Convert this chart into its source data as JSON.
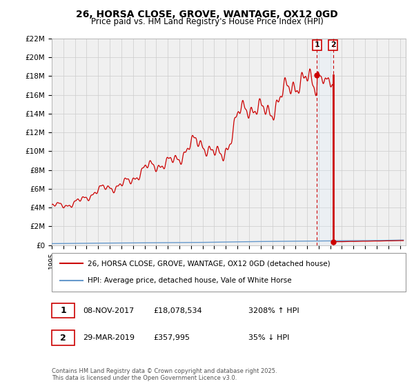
{
  "title": "26, HORSA CLOSE, GROVE, WANTAGE, OX12 0GD",
  "subtitle": "Price paid vs. HM Land Registry's House Price Index (HPI)",
  "hpi_line_color": "#cc0000",
  "actual_line_color": "#6699cc",
  "vshade_color": "#ddeeff",
  "ylim": [
    0,
    22000000
  ],
  "yticks": [
    0,
    2000000,
    4000000,
    6000000,
    8000000,
    10000000,
    12000000,
    14000000,
    16000000,
    18000000,
    20000000,
    22000000
  ],
  "ytick_labels": [
    "£0",
    "£2M",
    "£4M",
    "£6M",
    "£8M",
    "£10M",
    "£12M",
    "£14M",
    "£16M",
    "£18M",
    "£20M",
    "£22M"
  ],
  "xlim_start": 1995.0,
  "xlim_end": 2025.5,
  "event1_year": 2017.86,
  "event2_year": 2019.24,
  "event1_price": 18078534,
  "event2_price": 357995,
  "legend_line1": "26, HORSA CLOSE, GROVE, WANTAGE, OX12 0GD (detached house)",
  "legend_line2": "HPI: Average price, detached house, Vale of White Horse",
  "annotation1_date": "08-NOV-2017",
  "annotation1_price": "£18,078,534",
  "annotation1_hpi": "3208% ↑ HPI",
  "annotation2_date": "29-MAR-2019",
  "annotation2_price": "£357,995",
  "annotation2_hpi": "35% ↓ HPI",
  "footer": "Contains HM Land Registry data © Crown copyright and database right 2025.\nThis data is licensed under the Open Government Licence v3.0.",
  "background_color": "#ffffff",
  "grid_color": "#cccccc",
  "plot_bg_color": "#f0f0f0"
}
